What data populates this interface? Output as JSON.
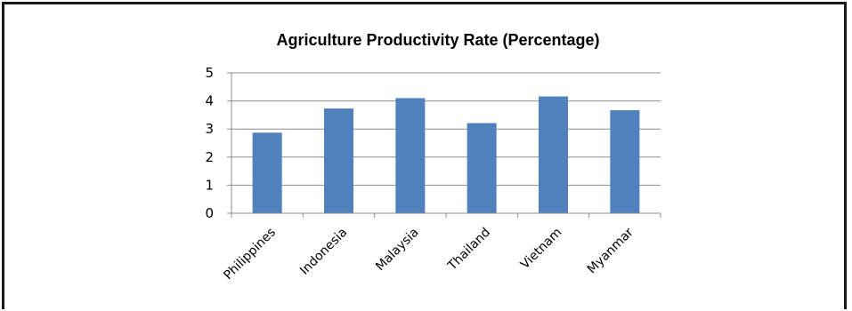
{
  "chart_data": {
    "type": "bar",
    "title": "Agriculture Productivity Rate (Percentage)",
    "categories": [
      "Philippines",
      "Indonesia",
      "Malaysia",
      "Thailand",
      "Vietnam",
      "Myanmar"
    ],
    "values": [
      2.87,
      3.73,
      4.1,
      3.21,
      4.16,
      3.67
    ],
    "ylim": [
      0,
      5
    ],
    "yticks": [
      0,
      1,
      2,
      3,
      4,
      5
    ],
    "xlabel": "",
    "ylabel": "",
    "grid": true,
    "legend": "none",
    "bar_color": "#4f81bd"
  }
}
